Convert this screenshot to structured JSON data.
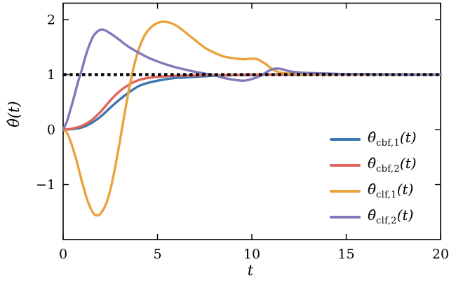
{
  "figure": {
    "xlabel": "t",
    "ylabel": "θ̂(t)"
  },
  "chart_data": {
    "type": "line",
    "title": "",
    "xlabel": "t",
    "ylabel": "θ̂(t)",
    "xlim": [
      0,
      20
    ],
    "ylim": [
      -2.0,
      2.3
    ],
    "x_ticks": [
      0,
      5,
      10,
      15,
      20
    ],
    "y_ticks": [
      -1,
      0,
      1,
      2
    ],
    "grid": false,
    "legend_position": "lower right",
    "frame_color": "#000000",
    "reference_line": {
      "y": 1.0,
      "color": "#000000",
      "style": "dotted"
    },
    "series": [
      {
        "id": "cbf-1",
        "label": "θ̂_cbf,1(t)",
        "color": "#3b77b0",
        "points": [
          [
            0,
            0
          ],
          [
            0.5,
            0.01
          ],
          [
            1,
            0.04
          ],
          [
            1.5,
            0.12
          ],
          [
            2,
            0.24
          ],
          [
            2.5,
            0.4
          ],
          [
            3,
            0.55
          ],
          [
            3.5,
            0.68
          ],
          [
            4,
            0.79
          ],
          [
            4.5,
            0.85
          ],
          [
            5,
            0.89
          ],
          [
            5.5,
            0.92
          ],
          [
            6,
            0.94
          ],
          [
            6.5,
            0.95
          ],
          [
            7,
            0.96
          ],
          [
            7.5,
            0.97
          ],
          [
            8,
            0.98
          ],
          [
            9,
            0.99
          ],
          [
            10,
            0.99
          ],
          [
            11,
            1
          ],
          [
            12,
            1
          ],
          [
            14,
            1
          ],
          [
            16,
            1
          ],
          [
            18,
            1
          ],
          [
            20,
            1
          ]
        ]
      },
      {
        "id": "cbf-2",
        "label": "θ̂_cbf,2(t)",
        "color": "#df645b",
        "points": [
          [
            0,
            0
          ],
          [
            0.5,
            0.02
          ],
          [
            1,
            0.07
          ],
          [
            1.5,
            0.17
          ],
          [
            2,
            0.33
          ],
          [
            2.5,
            0.53
          ],
          [
            3,
            0.7
          ],
          [
            3.5,
            0.82
          ],
          [
            4,
            0.9
          ],
          [
            4.5,
            0.94
          ],
          [
            5,
            0.96
          ],
          [
            5.5,
            0.97
          ],
          [
            6,
            0.98
          ],
          [
            7,
            0.985
          ],
          [
            8,
            0.99
          ],
          [
            9,
            0.995
          ],
          [
            10,
            1
          ],
          [
            12,
            1
          ],
          [
            14,
            1
          ],
          [
            16,
            1
          ],
          [
            18,
            1
          ],
          [
            20,
            1
          ]
        ]
      },
      {
        "id": "clf-1",
        "label": "θ̂_clf,1(t)",
        "color": "#e8a33d",
        "points": [
          [
            0,
            0
          ],
          [
            0.2,
            -0.06
          ],
          [
            0.4,
            -0.22
          ],
          [
            0.7,
            -0.55
          ],
          [
            1,
            -0.95
          ],
          [
            1.3,
            -1.3
          ],
          [
            1.6,
            -1.52
          ],
          [
            1.8,
            -1.56
          ],
          [
            2,
            -1.52
          ],
          [
            2.3,
            -1.33
          ],
          [
            2.6,
            -0.95
          ],
          [
            2.9,
            -0.42
          ],
          [
            3.2,
            0.18
          ],
          [
            3.5,
            0.75
          ],
          [
            3.8,
            1.22
          ],
          [
            4.1,
            1.55
          ],
          [
            4.4,
            1.76
          ],
          [
            4.8,
            1.9
          ],
          [
            5.2,
            1.96
          ],
          [
            5.6,
            1.95
          ],
          [
            6,
            1.89
          ],
          [
            6.4,
            1.79
          ],
          [
            6.8,
            1.68
          ],
          [
            7.2,
            1.57
          ],
          [
            7.6,
            1.47
          ],
          [
            8,
            1.4
          ],
          [
            8.5,
            1.33
          ],
          [
            9,
            1.3
          ],
          [
            9.5,
            1.28
          ],
          [
            10,
            1.29
          ],
          [
            10.3,
            1.28
          ],
          [
            10.7,
            1.2
          ],
          [
            11,
            1.12
          ],
          [
            11.3,
            1.06
          ],
          [
            11.6,
            1.03
          ],
          [
            12,
            1.02
          ],
          [
            13,
            1.01
          ],
          [
            14,
            1.01
          ],
          [
            16,
            1
          ],
          [
            18,
            1
          ],
          [
            20,
            1
          ]
        ]
      },
      {
        "id": "clf-2",
        "label": "θ̂_clf,2(t)",
        "color": "#8278b9",
        "points": [
          [
            0,
            0
          ],
          [
            0.2,
            0.15
          ],
          [
            0.4,
            0.38
          ],
          [
            0.6,
            0.62
          ],
          [
            0.8,
            0.88
          ],
          [
            1,
            1.1
          ],
          [
            1.2,
            1.35
          ],
          [
            1.4,
            1.55
          ],
          [
            1.6,
            1.7
          ],
          [
            1.8,
            1.78
          ],
          [
            2,
            1.82
          ],
          [
            2.2,
            1.81
          ],
          [
            2.5,
            1.75
          ],
          [
            2.8,
            1.68
          ],
          [
            3.1,
            1.6
          ],
          [
            3.5,
            1.5
          ],
          [
            4,
            1.4
          ],
          [
            4.5,
            1.31
          ],
          [
            5,
            1.24
          ],
          [
            5.5,
            1.18
          ],
          [
            6,
            1.13
          ],
          [
            6.5,
            1.09
          ],
          [
            7,
            1.05
          ],
          [
            7.5,
            1.02
          ],
          [
            8,
            0.99
          ],
          [
            8.4,
            0.95
          ],
          [
            8.8,
            0.92
          ],
          [
            9.2,
            0.9
          ],
          [
            9.6,
            0.89
          ],
          [
            10,
            0.92
          ],
          [
            10.4,
            0.97
          ],
          [
            10.8,
            1.05
          ],
          [
            11.1,
            1.1
          ],
          [
            11.4,
            1.11
          ],
          [
            11.7,
            1.09
          ],
          [
            12,
            1.06
          ],
          [
            12.5,
            1.04
          ],
          [
            13,
            1.03
          ],
          [
            14,
            1.02
          ],
          [
            15,
            1.01
          ],
          [
            16,
            1.01
          ],
          [
            18,
            1
          ],
          [
            20,
            1
          ]
        ]
      }
    ]
  },
  "legend": {
    "items": [
      {
        "base": "θ̂",
        "sub": "cbf,1",
        "arg": "(t)",
        "color": "#3b77b0"
      },
      {
        "base": "θ̂",
        "sub": "cbf,2",
        "arg": "(t)",
        "color": "#df645b"
      },
      {
        "base": "θ̂",
        "sub": "clf,1",
        "arg": "(t)",
        "color": "#e8a33d"
      },
      {
        "base": "θ̂",
        "sub": "clf,2",
        "arg": "(t)",
        "color": "#8278b9"
      }
    ]
  }
}
